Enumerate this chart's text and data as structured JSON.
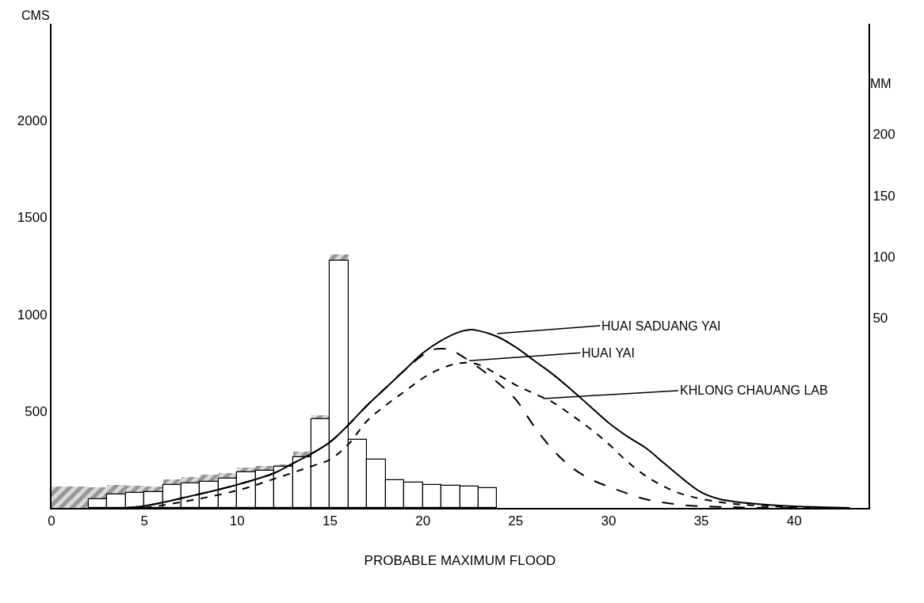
{
  "chart_data": {
    "type": "bar",
    "stacked": true,
    "xlabel": "PROBABLE MAXIMUM FLOOD",
    "ylabel": "CMS",
    "y2label": "MM",
    "x": [
      0.5,
      1.5,
      2.5,
      3.5,
      4.5,
      5.5,
      6.5,
      7.5,
      8.5,
      9.5,
      10.5,
      11.5,
      12.5,
      13.5,
      14.5,
      15.5,
      16.5,
      17.5,
      18.5,
      19.5,
      20.5,
      21.5,
      22.5,
      23.5
    ],
    "series": [
      {
        "color": "#ffffff",
        "values": [
          null,
          null,
          47,
          68,
          76,
          80,
          120,
          127,
          137,
          151,
          183,
          193,
          212,
          263,
          458,
          1275,
          352,
          248,
          145,
          131,
          120,
          115,
          112,
          103
        ]
      },
      {
        "color": "#555555",
        "values": [
          112,
          112,
          60,
          51,
          39,
          30,
          27,
          34,
          34,
          29,
          25,
          22,
          13,
          27,
          20,
          35,
          null,
          6,
          null,
          null,
          null,
          null,
          null,
          null
        ]
      },
      {
        "type": "line",
        "color": "#000000",
        "line_style": "solid",
        "x": [
          4,
          5,
          7,
          10,
          12,
          13,
          14,
          15,
          16,
          17,
          18,
          19,
          20,
          21,
          22,
          22.5,
          23,
          24,
          25,
          26,
          27,
          28,
          29,
          30,
          31,
          32,
          33,
          34,
          35,
          36,
          38,
          40,
          43
        ],
        "values": [
          0,
          10,
          50,
          120,
          180,
          230,
          280,
          340,
          430,
          530,
          620,
          710,
          800,
          865,
          910,
          920,
          915,
          885,
          830,
          760,
          690,
          610,
          525,
          440,
          370,
          310,
          230,
          150,
          80,
          45,
          20,
          8,
          0
        ]
      },
      {
        "type": "line",
        "color": "#000000",
        "line_style": "dashed",
        "x": [
          4,
          5,
          7,
          10,
          12,
          13,
          14,
          15,
          16,
          17,
          18,
          19,
          20,
          20.5,
          21.5,
          22,
          23,
          24,
          25,
          26,
          27,
          28,
          29,
          30,
          31,
          32,
          34,
          37,
          40
        ],
        "values": [
          0,
          10,
          50,
          120,
          180,
          230,
          280,
          340,
          430,
          530,
          620,
          710,
          790,
          817,
          817,
          790,
          725,
          650,
          560,
          420,
          300,
          210,
          150,
          110,
          75,
          45,
          15,
          3,
          0
        ]
      },
      {
        "type": "line",
        "color": "#000000",
        "line_style": "dotted",
        "x": [
          5,
          7,
          10,
          12,
          14,
          15,
          16,
          17,
          18,
          19,
          20,
          21,
          22,
          23,
          24,
          25,
          26,
          27,
          28,
          29,
          30,
          31,
          32,
          33,
          34,
          36,
          38,
          42
        ],
        "values": [
          0,
          30,
          90,
          150,
          215,
          250,
          330,
          450,
          530,
          600,
          670,
          720,
          748,
          740,
          690,
          635,
          590,
          545,
          480,
          410,
          330,
          240,
          165,
          110,
          70,
          30,
          12,
          0
        ]
      }
    ],
    "xlim": [
      0,
      44
    ],
    "xticks": [
      0,
      5,
      10,
      15,
      20,
      25,
      30,
      35,
      40
    ],
    "ylim": [
      0,
      2500
    ],
    "yticks": [
      500,
      1000,
      1500,
      2000
    ],
    "y2lim": [
      -105,
      290
    ],
    "y2ticks": [
      50,
      100,
      150,
      200
    ],
    "legend": false,
    "annotations": [
      {
        "text": "HUAI SADUANG YAI",
        "x": 24,
        "y": 900
      },
      {
        "text": "HUAI YAI",
        "x": 22.5,
        "y": 760
      },
      {
        "text": "KHLONG CHAUANG LAB",
        "x": 26.5,
        "y": 565
      }
    ]
  }
}
